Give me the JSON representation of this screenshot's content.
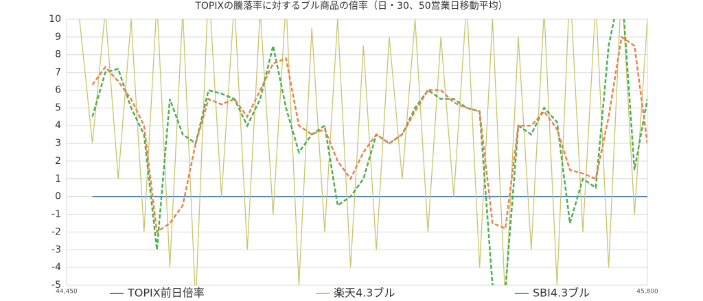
{
  "chart_data": {
    "type": "line",
    "title": "TOPIXの騰落率に対するブル商品の倍率（日・30、50営業日移動平均）",
    "x": [
      44450,
      44480,
      44510,
      44540,
      44570,
      44600,
      44630,
      44660,
      44690,
      44720,
      44750,
      44780,
      44810,
      44840,
      44870,
      44900,
      44930,
      44960,
      44990,
      45020,
      45050,
      45080,
      45110,
      45140,
      45170,
      45200,
      45230,
      45260,
      45290,
      45320,
      45350,
      45380,
      45410,
      45440,
      45470,
      45500,
      45530,
      45560,
      45590,
      45620,
      45650,
      45680,
      45710,
      45740,
      45770,
      45800
    ],
    "xlim": [
      44450,
      45800
    ],
    "xticks": [
      {
        "value": 44450,
        "label": "44,450"
      },
      {
        "value": 45800,
        "label": "45,800"
      }
    ],
    "ylim": [
      -5,
      10
    ],
    "yticks": [
      -5,
      -4,
      -3,
      -2,
      -1,
      0,
      1,
      2,
      3,
      4,
      5,
      6,
      7,
      8,
      9,
      10
    ],
    "grid": true,
    "legend": "bottom",
    "series": [
      {
        "name": "TOPIX前日倍率",
        "color": "#4a7ebb",
        "dash": false,
        "values": [
          null,
          null,
          0,
          0,
          0,
          0,
          0,
          0,
          0,
          0,
          0,
          0,
          0,
          0,
          0,
          0,
          0,
          0,
          0,
          0,
          0,
          0,
          0,
          0,
          0,
          0,
          0,
          0,
          0,
          0,
          0,
          0,
          0,
          0,
          0,
          0,
          0,
          0,
          0,
          0,
          0,
          0,
          0,
          0,
          0,
          0
        ]
      },
      {
        "name": "楽天4.3ブル",
        "color": "#c9c46a",
        "dash": false,
        "values": [
          null,
          10,
          3,
          10.5,
          1,
          10,
          -2,
          11,
          -4,
          10.5,
          -6,
          12,
          0,
          11,
          -3,
          10.5,
          -1,
          11,
          -5,
          9.5,
          -2,
          10,
          -4,
          8.5,
          -3,
          9,
          1,
          10,
          -2,
          9,
          0,
          11,
          -4,
          10,
          -6,
          9,
          -3,
          10.5,
          -5,
          12,
          -2,
          11,
          -4,
          12,
          -1,
          10
        ]
      },
      {
        "name": "SBI4.3ブル",
        "color": "#4caf50",
        "dash": true,
        "values": [
          null,
          null,
          4.5,
          7,
          7.2,
          5,
          3.5,
          -3,
          5.5,
          3.5,
          3,
          6,
          5.8,
          5.5,
          4,
          5.5,
          8.5,
          5,
          2.5,
          3.5,
          4,
          -0.5,
          0,
          1,
          3.5,
          3,
          3.5,
          5,
          6,
          5.5,
          5.5,
          5,
          4.8,
          -5,
          -5.2,
          4,
          3.5,
          5,
          4.2,
          -1.5,
          1,
          0.5,
          8.5,
          12,
          1.5,
          5.5
        ]
      },
      {
        "color": "#e8844a",
        "dash": true,
        "values": [
          null,
          null,
          6.3,
          7.3,
          6.5,
          5.5,
          4,
          -2,
          -1.5,
          -0.5,
          3,
          5.5,
          5.2,
          5.5,
          4.5,
          6,
          7.5,
          7.8,
          4,
          3.5,
          3.8,
          2,
          1,
          2.5,
          3.5,
          3,
          3.5,
          4.8,
          6,
          6,
          5.3,
          5,
          4.8,
          -1.5,
          -1.8,
          4,
          4,
          4.8,
          3.8,
          1.5,
          1.3,
          1,
          4.5,
          9,
          8.5,
          3
        ]
      }
    ]
  }
}
